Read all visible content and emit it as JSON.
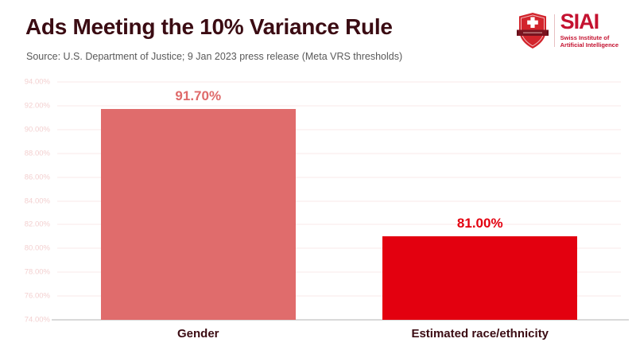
{
  "header": {
    "title": "Ads Meeting the 10% Variance Rule",
    "source": "Source: U.S. Department of Justice; 9 Jan 2023 press release (Meta VRS thresholds)"
  },
  "logo": {
    "acronym": "SIAI",
    "subtitle_line1": "Swiss Institute of",
    "subtitle_line2": "Artificial Intelligence",
    "brand_color": "#C41230"
  },
  "chart_data": {
    "type": "bar",
    "title": "Ads Meeting the 10% Variance Rule",
    "categories": [
      "Gender",
      "Estimated race/ethnicity"
    ],
    "values": [
      91.7,
      81.0
    ],
    "value_labels": [
      "91.70%",
      "81.00%"
    ],
    "bar_colors": [
      "#E06C6C",
      "#E3000F"
    ],
    "value_label_colors": [
      "#DF6A6A",
      "#E3000F"
    ],
    "xlabel": "",
    "ylabel": "",
    "ylim": [
      74,
      94
    ],
    "ytick_step": 2,
    "ytick_decimals": 2,
    "ytick_suffix": "%",
    "grid": true,
    "legend": false,
    "theme_colors": {
      "gridline": "#FAE9E9",
      "ytick_label": "#F3D0D0",
      "axis_line": "#D9D9D9",
      "category_label": "#3B0C13",
      "title": "#3B0C13",
      "source": "#595959"
    }
  }
}
